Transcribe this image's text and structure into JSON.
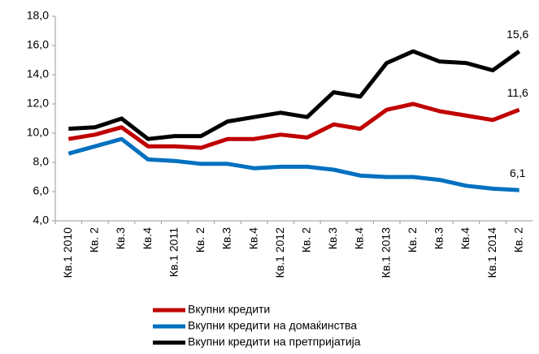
{
  "chart_data": {
    "type": "line",
    "categories": [
      "Кв.1 2010",
      "Кв. 2",
      "Кв.3",
      "Кв.4",
      "Кв.1 2011",
      "Кв. 2",
      "Кв.3",
      "Кв.4",
      "Кв.1 2012",
      "Кв. 2",
      "Кв.3",
      "Кв.4",
      "Кв.1 2013",
      "Кв. 2",
      "Кв.3",
      "Кв.4",
      "Кв.1 2014",
      "Кв. 2"
    ],
    "series": [
      {
        "name": "Вкупни кредити",
        "color": "#c00000",
        "values": [
          9.6,
          9.9,
          10.4,
          9.1,
          9.1,
          9.0,
          9.6,
          9.6,
          9.9,
          9.7,
          10.6,
          10.3,
          11.6,
          12.0,
          11.5,
          11.2,
          10.9,
          11.6
        ],
        "value_labels": [
          null,
          null,
          null,
          null,
          null,
          null,
          null,
          null,
          null,
          null,
          null,
          null,
          null,
          null,
          null,
          null,
          null,
          "11,6"
        ]
      },
      {
        "name": "Вкупни кредити на домаќинства",
        "color": "#0070c0",
        "values": [
          8.6,
          9.1,
          9.6,
          8.2,
          8.1,
          7.9,
          7.9,
          7.6,
          7.7,
          7.7,
          7.5,
          7.1,
          7.0,
          7.0,
          6.8,
          6.4,
          6.2,
          6.1
        ],
        "value_labels": [
          null,
          null,
          null,
          null,
          null,
          null,
          null,
          null,
          null,
          null,
          null,
          null,
          null,
          null,
          null,
          null,
          null,
          "6,1"
        ]
      },
      {
        "name": "Вкупни кредити на претпријатија",
        "color": "#000000",
        "values": [
          10.3,
          10.4,
          11.0,
          9.6,
          9.8,
          9.8,
          10.8,
          11.1,
          11.4,
          11.1,
          12.8,
          12.5,
          14.8,
          15.6,
          14.9,
          14.8,
          14.3,
          15.6
        ],
        "value_labels": [
          null,
          null,
          null,
          null,
          null,
          null,
          null,
          null,
          null,
          null,
          null,
          null,
          null,
          null,
          null,
          null,
          null,
          "15,6"
        ]
      }
    ],
    "ylim": [
      4,
      18
    ],
    "yticks": [
      {
        "value": 4,
        "label": "4,0"
      },
      {
        "value": 6,
        "label": "6,0"
      },
      {
        "value": 8,
        "label": "8,0"
      },
      {
        "value": 10,
        "label": "10,0"
      },
      {
        "value": 12,
        "label": "12,0"
      },
      {
        "value": 14,
        "label": "14,0"
      },
      {
        "value": 16,
        "label": "16,0"
      },
      {
        "value": 18,
        "label": "18,0"
      }
    ],
    "grid": false
  }
}
